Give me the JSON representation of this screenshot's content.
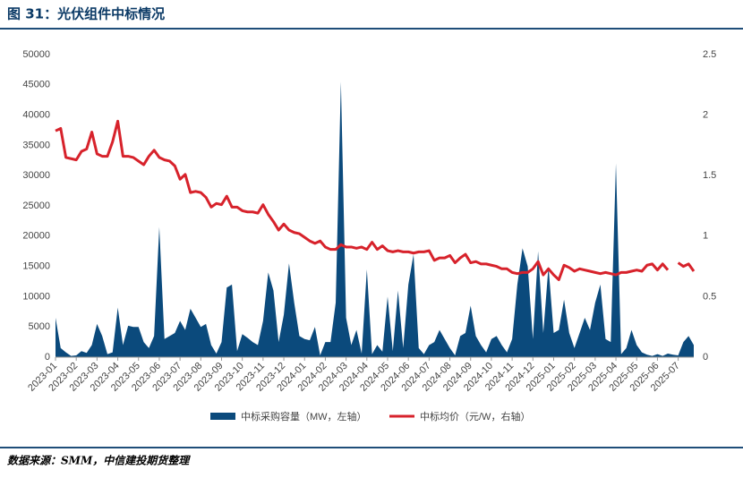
{
  "chart_data": {
    "type": "area-line",
    "title": "图 31：光伏组件中标情况",
    "source": "数据来源：SMM，中信建投期货整理",
    "categories": [
      "2023-01",
      null,
      null,
      null,
      "2023-02",
      null,
      null,
      null,
      "2023-03",
      null,
      null,
      null,
      "2023-04",
      null,
      null,
      null,
      "2023-05",
      null,
      null,
      null,
      "2023-06",
      null,
      null,
      null,
      "2023-07",
      null,
      null,
      null,
      "2023-08",
      null,
      null,
      null,
      "2023-09",
      null,
      null,
      null,
      "2023-10",
      null,
      null,
      null,
      "2023-11",
      null,
      null,
      null,
      "2023-12",
      null,
      null,
      null,
      "2024-01",
      null,
      null,
      null,
      "2024-02",
      null,
      null,
      null,
      "2024-03",
      null,
      null,
      null,
      "2024-04",
      null,
      null,
      null,
      "2024-05",
      null,
      null,
      null,
      "2024-06",
      null,
      null,
      null,
      "2024-07",
      null,
      null,
      null,
      "2024-08",
      null,
      null,
      null,
      "2024-09",
      null,
      null,
      null,
      "2024-10",
      null,
      null,
      null,
      "2024-11",
      null,
      null,
      null,
      "2024-12",
      null,
      null,
      null,
      "2025-01",
      null,
      null,
      null,
      "2025-02",
      null,
      null,
      null,
      "2025-03",
      null,
      null,
      null,
      "2025-04",
      null,
      null,
      null,
      "2025-05",
      null,
      null,
      null,
      "2025-06",
      null,
      null,
      null,
      "2025-07",
      null,
      null,
      null
    ],
    "series": [
      {
        "name": "中标采购容量（MW，左轴）",
        "kind": "area",
        "axis": "y",
        "color": "#0b4a7c",
        "values": [
          6500,
          1500,
          800,
          200,
          300,
          1000,
          700,
          2000,
          5500,
          3500,
          500,
          800,
          8200,
          2000,
          5200,
          5000,
          5000,
          2500,
          1500,
          3500,
          21500,
          3000,
          3500,
          4000,
          6000,
          4500,
          8000,
          6500,
          5000,
          5500,
          2000,
          600,
          2500,
          11500,
          12000,
          1000,
          3800,
          3200,
          2500,
          2000,
          6000,
          14000,
          11000,
          2500,
          7000,
          15500,
          9000,
          3500,
          3000,
          2800,
          5000,
          300,
          2500,
          2500,
          9000,
          45500,
          6500,
          2000,
          4500,
          600,
          14500,
          500,
          2000,
          900,
          10000,
          1000,
          11000,
          1500,
          12000,
          17000,
          1500,
          500,
          2000,
          2500,
          4500,
          3000,
          1500,
          300,
          3500,
          4000,
          8500,
          3500,
          2000,
          800,
          3000,
          3500,
          2000,
          800,
          3000,
          12000,
          18000,
          15000,
          3000,
          17500,
          4000,
          15000,
          4000,
          4500,
          9500,
          4000,
          1500,
          4000,
          6500,
          4500,
          9000,
          12000,
          3000,
          2500,
          32000,
          500,
          1500,
          4500,
          2000,
          800,
          400,
          200,
          500,
          200,
          600,
          400,
          300,
          2500,
          3500,
          2000
        ]
      },
      {
        "name": "中标均价（元/W，右轴）",
        "kind": "line",
        "axis": "y2",
        "color": "#d7222b",
        "values": [
          1.87,
          1.89,
          1.65,
          1.64,
          1.63,
          1.7,
          1.72,
          1.86,
          1.68,
          1.66,
          1.66,
          1.78,
          1.95,
          1.66,
          1.66,
          1.65,
          1.62,
          1.59,
          1.66,
          1.71,
          1.65,
          1.63,
          1.62,
          1.58,
          1.47,
          1.51,
          1.36,
          1.37,
          1.36,
          1.32,
          1.24,
          1.27,
          1.26,
          1.33,
          1.24,
          1.24,
          1.21,
          1.2,
          1.2,
          1.19,
          1.26,
          1.18,
          1.12,
          1.05,
          1.1,
          1.05,
          1.03,
          1.02,
          0.99,
          0.96,
          0.94,
          0.96,
          0.91,
          0.89,
          0.89,
          0.93,
          0.91,
          0.91,
          0.9,
          0.91,
          0.89,
          0.95,
          0.89,
          0.92,
          0.88,
          0.87,
          0.88,
          0.87,
          0.87,
          0.86,
          0.87,
          0.87,
          0.88,
          0.8,
          0.82,
          0.82,
          0.84,
          0.78,
          0.82,
          0.85,
          0.78,
          0.79,
          0.77,
          0.77,
          0.76,
          0.75,
          0.73,
          0.73,
          0.7,
          0.69,
          0.7,
          0.7,
          0.73,
          0.79,
          0.68,
          0.73,
          0.68,
          0.64,
          0.76,
          0.74,
          0.71,
          0.73,
          0.72,
          0.71,
          0.7,
          0.69,
          0.7,
          0.69,
          0.68,
          0.7,
          0.7,
          0.71,
          0.72,
          0.71,
          0.76,
          0.77,
          0.72,
          0.77,
          0.72,
          null,
          0.78,
          0.75,
          0.77,
          0.71
        ]
      }
    ],
    "ylim": [
      0,
      50000
    ],
    "yticks": [
      0,
      5000,
      10000,
      15000,
      20000,
      25000,
      30000,
      35000,
      40000,
      45000,
      50000
    ],
    "y2lim": [
      0,
      2.5
    ],
    "y2ticks": [
      0,
      0.5,
      1,
      1.5,
      2,
      2.5
    ],
    "legend": "bottom"
  }
}
